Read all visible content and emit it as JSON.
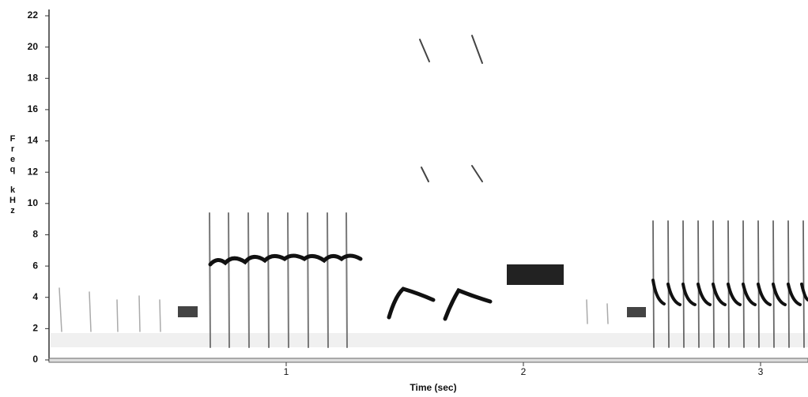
{
  "chart_data": {
    "type": "spectrogram",
    "xlabel": "Time (sec)",
    "ylabel": "Freq kHz",
    "xlim": [
      0,
      3.2
    ],
    "xticks": [
      1,
      2,
      3
    ],
    "ylim": [
      0,
      22
    ],
    "yticks": [
      0,
      2,
      4,
      6,
      8,
      10,
      12,
      14,
      16,
      18,
      20,
      22
    ],
    "color": "#222222"
  }
}
